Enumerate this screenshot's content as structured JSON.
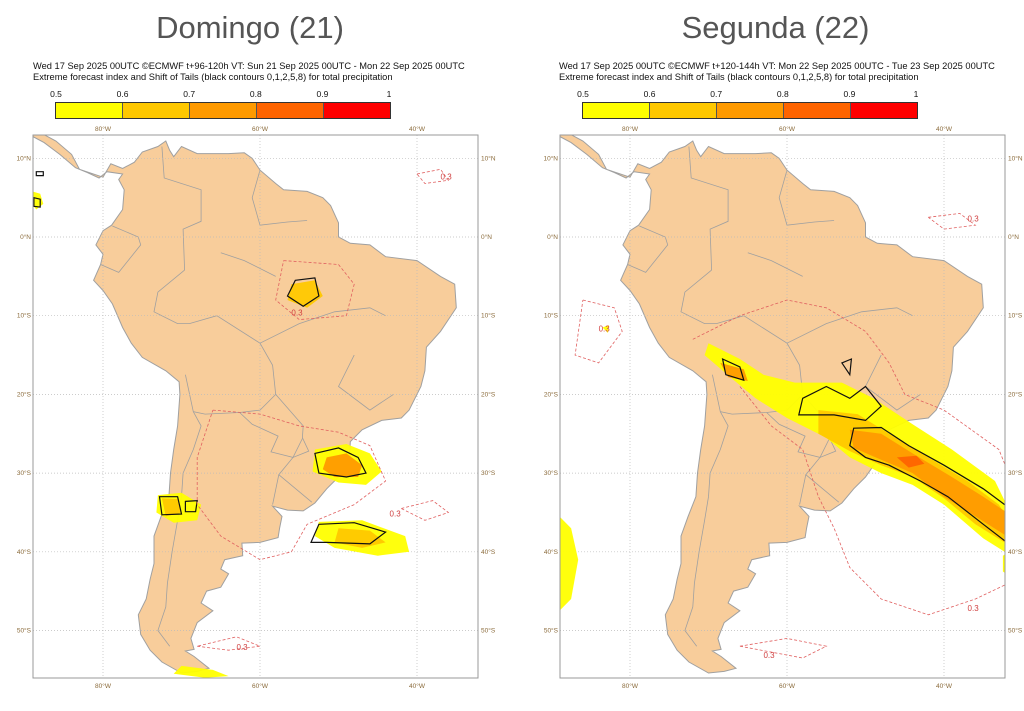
{
  "panels": [
    {
      "title": "Domingo (21)",
      "header_line1": "Wed 17 Sep 2025 00UTC ©ECMWF t+96-120h  VT: Sun 21 Sep 2025 00UTC - Mon 22 Sep 2025 00UTC",
      "header_line2": "Extreme forecast index and Shift of Tails (black contours 0,1,2,5,8) for total precipitation"
    },
    {
      "title": "Segunda (22)",
      "header_line1": "Wed 17 Sep 2025 00UTC ©ECMWF t+120-144h  VT: Mon 22 Sep 2025 00UTC - Tue 23 Sep 2025 00UTC",
      "header_line2": "Extreme forecast index and Shift of Tails (black contours 0,1,2,5,8) for total precipitation"
    }
  ],
  "colorbar": {
    "ticks": [
      "0.5",
      "0.6",
      "0.7",
      "0.8",
      "0.9",
      "1"
    ],
    "colors": [
      "#ffff00",
      "#ffc800",
      "#ff9a00",
      "#ff6400",
      "#ff0000"
    ]
  },
  "axes": {
    "lon_labels": [
      "80°W",
      "60°W",
      "40°W"
    ],
    "lat_labels": [
      "10°N",
      "0°N",
      "10°S",
      "20°S",
      "30°S",
      "40°S",
      "50°S"
    ]
  },
  "contour_label": "0.3",
  "colors": {
    "land": "#f8cd9b",
    "border": "#a0a0a0",
    "efi_contour": "#e06060",
    "sot_contour": "#111111"
  }
}
